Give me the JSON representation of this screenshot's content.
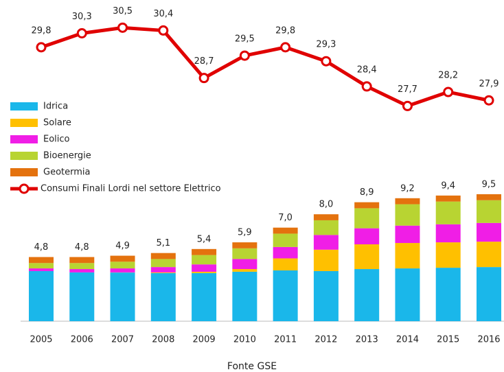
{
  "chart_data": {
    "type": "bar",
    "stacked": true,
    "categories": [
      "2005",
      "2006",
      "2007",
      "2008",
      "2009",
      "2010",
      "2011",
      "2012",
      "2013",
      "2014",
      "2015",
      "2016"
    ],
    "series": [
      {
        "name": "Idrica",
        "color": "#1ab7ea",
        "values": [
          3.75,
          3.65,
          3.64,
          3.6,
          3.6,
          3.7,
          3.8,
          3.75,
          3.9,
          3.95,
          4.0,
          4.05
        ]
      },
      {
        "name": "Solare",
        "color": "#ffc000",
        "values": [
          0,
          0,
          0.01,
          0.05,
          0.1,
          0.2,
          0.9,
          1.6,
          1.85,
          1.9,
          1.9,
          1.9
        ]
      },
      {
        "name": "Eolico",
        "color": "#f01ee6",
        "values": [
          0.2,
          0.25,
          0.3,
          0.4,
          0.55,
          0.75,
          0.85,
          1.1,
          1.2,
          1.3,
          1.35,
          1.4
        ]
      },
      {
        "name": "Bioenergie",
        "color": "#b8d432",
        "values": [
          0.4,
          0.45,
          0.5,
          0.6,
          0.7,
          0.8,
          1.0,
          1.1,
          1.5,
          1.6,
          1.7,
          1.7
        ]
      },
      {
        "name": "Geotermia",
        "color": "#e4720e",
        "values": [
          0.45,
          0.45,
          0.45,
          0.45,
          0.45,
          0.45,
          0.45,
          0.45,
          0.45,
          0.45,
          0.45,
          0.45
        ]
      },
      {
        "name": "Consumi Finali Lordi nel settore Elettrico",
        "type": "line",
        "axis": "y2",
        "color": "#e00000",
        "values": [
          29.8,
          30.3,
          30.5,
          30.4,
          28.7,
          29.5,
          29.8,
          29.3,
          28.4,
          27.7,
          28.2,
          27.9
        ],
        "value_labels": [
          "29,8",
          "30,3",
          "30,5",
          "30,4",
          "28,7",
          "29,5",
          "29,8",
          "29,3",
          "28,4",
          "27,7",
          "28,2",
          "27,9"
        ]
      }
    ],
    "totals": [
      4.8,
      4.8,
      4.9,
      5.1,
      5.4,
      5.9,
      7.0,
      8.0,
      8.9,
      9.2,
      9.4,
      9.5
    ],
    "total_labels": [
      "4,8",
      "4,8",
      "4,9",
      "5,1",
      "5,4",
      "5,9",
      "7,0",
      "8,0",
      "8,9",
      "9,2",
      "9,4",
      "9,5"
    ],
    "ylim": [
      0,
      23
    ],
    "y2lim": [
      20,
      31
    ],
    "source": "Fonte GSE"
  }
}
